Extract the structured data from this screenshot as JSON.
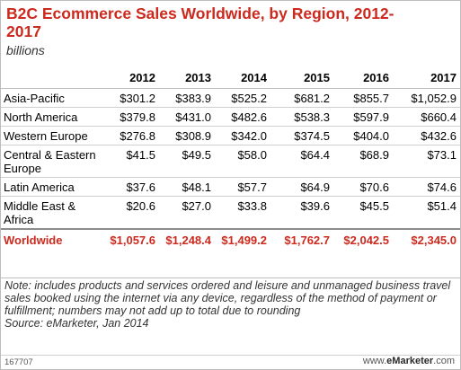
{
  "title": "B2C Ecommerce Sales Worldwide, by Region, 2012-2017",
  "subtitle": "billions",
  "footer": {
    "note": "Note: includes products and services ordered and leisure and unmanaged business travel sales booked using the internet via any device, regardless of the method of payment or fulfillment; numbers may not add up to total due to rounding",
    "source": "Source: eMarketer, Jan 2014",
    "code": "167707",
    "brand_prefix": "www.",
    "brand_name": "eMarketer",
    "brand_suffix": ".com"
  },
  "chart_data": {
    "type": "table",
    "title": "B2C Ecommerce Sales Worldwide, by Region, 2012-2017",
    "subtitle": "billions",
    "columns": [
      "2012",
      "2013",
      "2014",
      "2015",
      "2016",
      "2017"
    ],
    "rows": [
      {
        "label": "Asia-Pacific",
        "values": [
          "$301.2",
          "$383.9",
          "$525.2",
          "$681.2",
          "$855.7",
          "$1,052.9"
        ]
      },
      {
        "label": "North America",
        "values": [
          "$379.8",
          "$431.0",
          "$482.6",
          "$538.3",
          "$597.9",
          "$660.4"
        ]
      },
      {
        "label": "Western Europe",
        "values": [
          "$276.8",
          "$308.9",
          "$342.0",
          "$374.5",
          "$404.0",
          "$432.6"
        ]
      },
      {
        "label": "Central & Eastern Europe",
        "values": [
          "$41.5",
          "$49.5",
          "$58.0",
          "$64.4",
          "$68.9",
          "$73.1"
        ]
      },
      {
        "label": "Latin America",
        "values": [
          "$37.6",
          "$48.1",
          "$57.7",
          "$64.9",
          "$70.6",
          "$74.6"
        ]
      },
      {
        "label": "Middle East & Africa",
        "values": [
          "$20.6",
          "$27.0",
          "$33.8",
          "$39.6",
          "$45.5",
          "$51.4"
        ]
      }
    ],
    "total": {
      "label": "Worldwide",
      "values": [
        "$1,057.6",
        "$1,248.4",
        "$1,499.2",
        "$1,762.7",
        "$2,042.5",
        "$2,345.0"
      ]
    }
  },
  "colors": {
    "accent": "#cc2a1e",
    "text": "#000000",
    "muted": "#333333",
    "rule": "#cfcfcf"
  }
}
